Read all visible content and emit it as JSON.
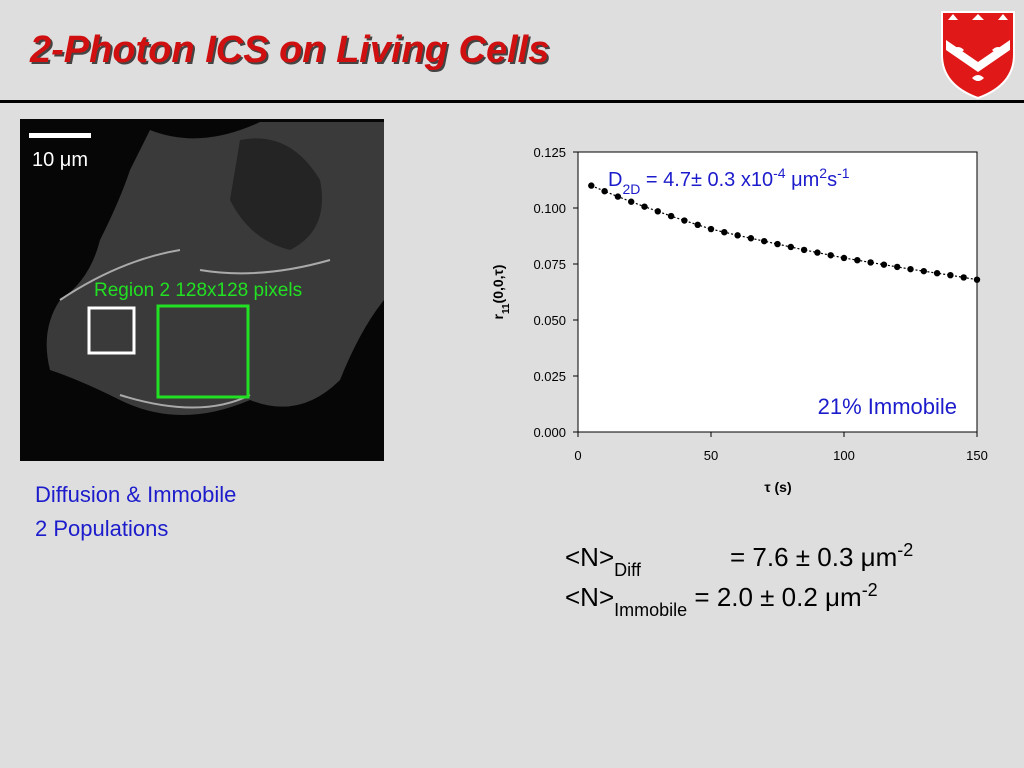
{
  "title": "2-Photon ICS on Living Cells",
  "image": {
    "scale_label": "10 μm",
    "region_label": "Region 2 128x128 pixels"
  },
  "notes": [
    "Diffusion & Immobile",
    "2 Populations"
  ],
  "equations": [
    {
      "parts": [
        "<N>",
        "Diff",
        "= 7.6 ± 0.3 μm",
        "-2"
      ]
    },
    {
      "parts": [
        "<N>",
        "Immobile",
        " = 2.0 ± 0.2 μm",
        "-2"
      ]
    }
  ],
  "chart_data": {
    "type": "scatter",
    "x_label": "τ (s)",
    "y_label": [
      "r",
      "11",
      "(0,0,τ)"
    ],
    "annotations": [
      {
        "parts": [
          "D",
          "2D",
          " = 4.7± 0.3 x10",
          "-4",
          " μm",
          "2",
          "s",
          "-1"
        ]
      },
      {
        "parts": [
          "21% Immobile"
        ]
      }
    ],
    "x": [
      5,
      10,
      15,
      20,
      25,
      30,
      35,
      40,
      45,
      50,
      55,
      60,
      65,
      70,
      75,
      80,
      85,
      90,
      95,
      100,
      105,
      110,
      115,
      120,
      125,
      130,
      135,
      140,
      145,
      150
    ],
    "series": [
      {
        "color": "#000000",
        "values": [
          0.11,
          0.1075,
          0.1051,
          0.1028,
          0.1006,
          0.0985,
          0.0964,
          0.0944,
          0.0925,
          0.0906,
          0.0892,
          0.0878,
          0.0865,
          0.0852,
          0.0839,
          0.0826,
          0.0813,
          0.0801,
          0.0789,
          0.0777,
          0.0767,
          0.0757,
          0.0747,
          0.0737,
          0.0727,
          0.0718,
          0.0709,
          0.07,
          0.069,
          0.068
        ]
      }
    ],
    "xlim": [
      0,
      150
    ],
    "xticks": [
      0,
      50,
      100,
      150
    ],
    "ylim": [
      0,
      0.125
    ],
    "yticks": [
      {
        "value": 0,
        "label": "0.000"
      },
      0.025,
      {
        "value": 0.05,
        "label": "0.050"
      },
      0.075,
      {
        "value": 0.1,
        "label": "0.100"
      },
      0.125
    ]
  }
}
